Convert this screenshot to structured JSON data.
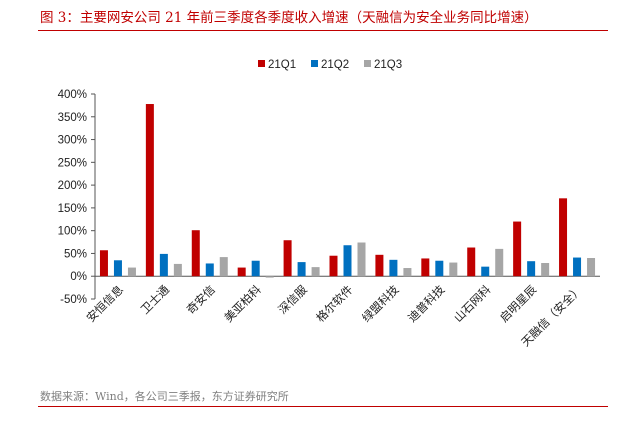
{
  "title": "图 3：主要网安公司 21 年前三季度各季度收入增速（天融信为安全业务同比增速）",
  "source": "数据来源：Wind，各公司三季报，东方证券研究所",
  "colors": {
    "accent": "#c00000",
    "series": [
      "#c00000",
      "#0070c0",
      "#a6a6a6"
    ]
  },
  "chart_data": {
    "type": "bar",
    "title": "图 3：主要网安公司 21 年前三季度各季度收入增速（天融信为安全业务同比增速）",
    "categories": [
      "安恒信息",
      "卫士通",
      "奇安信",
      "美亚柏科",
      "深信服",
      "格尔软件",
      "绿盟科技",
      "迪普科技",
      "山石网科",
      "启明星辰",
      "天融信（安全）"
    ],
    "series": [
      {
        "name": "21Q1",
        "values": [
          57,
          378,
          101,
          19,
          79,
          45,
          47,
          39,
          63,
          120,
          171
        ]
      },
      {
        "name": "21Q2",
        "values": [
          35,
          49,
          28,
          34,
          31,
          68,
          36,
          34,
          21,
          33,
          41
        ]
      },
      {
        "name": "21Q3",
        "values": [
          19,
          27,
          42,
          -3,
          20,
          74,
          18,
          30,
          60,
          29,
          40
        ]
      }
    ],
    "ylim": [
      -50,
      400
    ],
    "yticks": [
      "-50%",
      "0%",
      "50%",
      "100%",
      "150%",
      "200%",
      "250%",
      "300%",
      "350%",
      "400%"
    ],
    "legend": "top-center",
    "grid": false
  }
}
